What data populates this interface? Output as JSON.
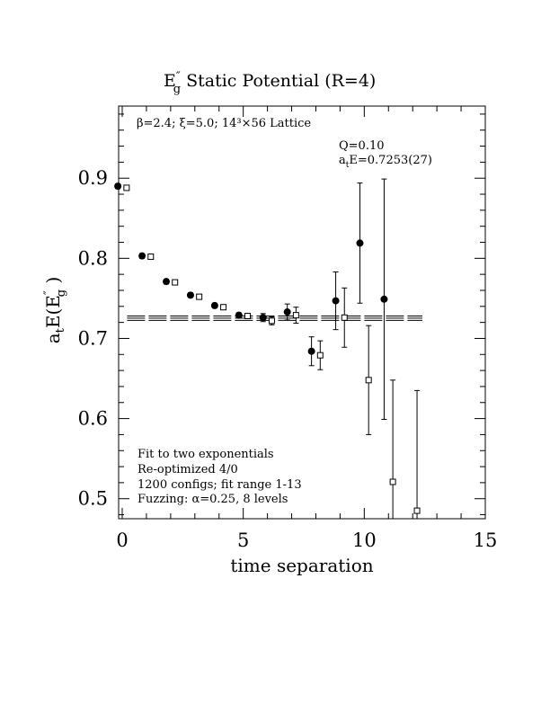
{
  "chart_data": {
    "type": "scatter",
    "title_main": "E",
    "title_sub": "g",
    "title_sup": "″",
    "title_rest": "  Static Potential (R=4)",
    "xlabel": "time separation",
    "ylabel_prefix": "a",
    "ylabel_sub_t": "t",
    "ylabel_mid": "E(E",
    "ylabel_sup": "″",
    "ylabel_sub_g": "g",
    "ylabel_end": " )",
    "xlim": [
      0,
      15
    ],
    "ylim": [
      0.475,
      0.99
    ],
    "xticks": [
      "0",
      "5",
      "10",
      "15"
    ],
    "xtick_values": [
      0,
      5,
      10,
      15
    ],
    "yticks": [
      "0.5",
      "0.6",
      "0.7",
      "0.8",
      "0.9"
    ],
    "ytick_values": [
      0.5,
      0.6,
      0.7,
      0.8,
      0.9
    ],
    "lattice_info": "β=2.4; ξ=5.0; 14³×56 Lattice",
    "fit_q": "Q=0.10",
    "fit_energy_prefix": "a",
    "fit_energy_sub": "t",
    "fit_energy_rest": "E=0.7253(27)",
    "notes": [
      "Fit to two exponentials",
      "Re-optimized 4/0",
      "1200 configs; fit range 1-13",
      "Fuzzing: α=0.25, 8 levels"
    ],
    "fit_band": {
      "central": 0.7253,
      "error": 0.0027,
      "x_start": 0.2,
      "x_end": 12.4
    },
    "series": [
      {
        "marker": "filled-circle",
        "points": [
          {
            "x": 0,
            "y": 0.89,
            "err": 0.003
          },
          {
            "x": 1,
            "y": 0.803,
            "err": 0.003
          },
          {
            "x": 2,
            "y": 0.771,
            "err": 0.003
          },
          {
            "x": 3,
            "y": 0.754,
            "err": 0.003
          },
          {
            "x": 4,
            "y": 0.741,
            "err": 0.003
          },
          {
            "x": 5,
            "y": 0.729,
            "err": 0.003
          },
          {
            "x": 6,
            "y": 0.726,
            "err": 0.005
          },
          {
            "x": 7,
            "y": 0.733,
            "err": 0.01
          },
          {
            "x": 8,
            "y": 0.684,
            "err": 0.018
          },
          {
            "x": 9,
            "y": 0.747,
            "err": 0.036
          },
          {
            "x": 10,
            "y": 0.819,
            "err": 0.075
          },
          {
            "x": 11,
            "y": 0.749,
            "err": 0.15
          }
        ]
      },
      {
        "marker": "open-square",
        "points": [
          {
            "x": 0,
            "y": 0.888,
            "err": 0.003
          },
          {
            "x": 1,
            "y": 0.802,
            "err": 0.003
          },
          {
            "x": 2,
            "y": 0.77,
            "err": 0.003
          },
          {
            "x": 3,
            "y": 0.752,
            "err": 0.003
          },
          {
            "x": 4,
            "y": 0.739,
            "err": 0.003
          },
          {
            "x": 5,
            "y": 0.728,
            "err": 0.003
          },
          {
            "x": 6,
            "y": 0.722,
            "err": 0.005
          },
          {
            "x": 7,
            "y": 0.729,
            "err": 0.01
          },
          {
            "x": 8,
            "y": 0.679,
            "err": 0.018
          },
          {
            "x": 9,
            "y": 0.726,
            "err": 0.037
          },
          {
            "x": 10,
            "y": 0.648,
            "err": 0.068
          },
          {
            "x": 11,
            "y": 0.521,
            "err": 0.127
          },
          {
            "x": 12,
            "y": 0.485,
            "err": 0.15
          }
        ]
      }
    ]
  }
}
